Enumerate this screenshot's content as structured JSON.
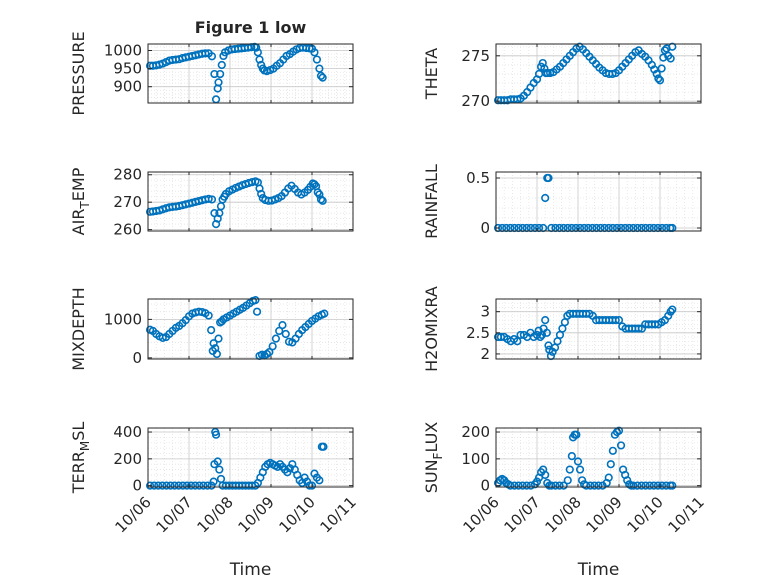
{
  "figure_title": "Figure 1 low",
  "colors": {
    "marker": "#0072BD",
    "axis": "#262626",
    "grid": "#c8c8c8",
    "background": "#ffffff"
  },
  "chart_data": [
    {
      "type": "scatter",
      "name": "pressure",
      "title": "Figure 1 low",
      "ylabel": "PRESSURE",
      "ylabel_sub": "",
      "ylabel_post": "",
      "xlabel": "",
      "xlim": [
        0,
        5
      ],
      "ylim": [
        855,
        1018
      ],
      "yticks": [
        900,
        950,
        1000
      ],
      "yticklabels": [
        "900",
        "950",
        "1000"
      ],
      "grid": true,
      "minor_grid": true,
      "x": [
        0.05,
        0.12,
        0.2,
        0.28,
        0.36,
        0.44,
        0.52,
        0.6,
        0.68,
        0.76,
        0.84,
        0.92,
        1.0,
        1.08,
        1.16,
        1.24,
        1.32,
        1.4,
        1.48,
        1.56,
        1.62,
        1.66,
        1.7,
        1.72,
        1.76,
        1.8,
        1.84,
        1.88,
        1.96,
        2.04,
        2.12,
        2.2,
        2.28,
        2.36,
        2.44,
        2.52,
        2.6,
        2.64,
        2.68,
        2.72,
        2.76,
        2.8,
        2.84,
        2.9,
        2.98,
        3.06,
        3.14,
        3.22,
        3.3,
        3.38,
        3.46,
        3.54,
        3.62,
        3.7,
        3.78,
        3.86,
        3.94,
        4.0,
        4.06,
        4.12,
        4.18,
        4.22,
        4.26
      ],
      "y": [
        958,
        958,
        959,
        961,
        964,
        968,
        972,
        974,
        975,
        976,
        979,
        981,
        983,
        985,
        987,
        989,
        991,
        992,
        992,
        984,
        935,
        865,
        895,
        912,
        935,
        960,
        985,
        995,
        1000,
        1003,
        1004,
        1005,
        1006,
        1007,
        1008,
        1009,
        1010,
        1008,
        995,
        975,
        960,
        950,
        945,
        943,
        946,
        950,
        958,
        965,
        975,
        985,
        990,
        997,
        1003,
        1007,
        1008,
        1007,
        1006,
        1005,
        995,
        975,
        950,
        930,
        925
      ]
    },
    {
      "type": "scatter",
      "name": "theta",
      "title": "",
      "ylabel": "THETA",
      "ylabel_sub": "",
      "ylabel_post": "",
      "xlabel": "",
      "xlim": [
        0,
        5
      ],
      "ylim": [
        269.8,
        276.3
      ],
      "yticks": [
        270,
        275
      ],
      "yticklabels": [
        "270",
        "275"
      ],
      "grid": true,
      "minor_grid": true,
      "x": [
        0.05,
        0.12,
        0.2,
        0.28,
        0.36,
        0.44,
        0.52,
        0.6,
        0.68,
        0.76,
        0.84,
        0.92,
        1.0,
        1.05,
        1.1,
        1.14,
        1.18,
        1.22,
        1.26,
        1.32,
        1.4,
        1.48,
        1.56,
        1.64,
        1.72,
        1.8,
        1.88,
        1.96,
        2.04,
        2.12,
        2.2,
        2.28,
        2.36,
        2.44,
        2.52,
        2.6,
        2.68,
        2.76,
        2.84,
        2.92,
        3.0,
        3.08,
        3.16,
        3.24,
        3.32,
        3.4,
        3.48,
        3.56,
        3.64,
        3.72,
        3.8,
        3.86,
        3.92,
        3.96,
        4.0,
        4.04,
        4.08,
        4.12,
        4.16,
        4.2,
        4.26,
        4.3
      ],
      "y": [
        270.1,
        270.1,
        270.1,
        270.1,
        270.2,
        270.2,
        270.2,
        270.3,
        270.6,
        271.0,
        271.5,
        272.0,
        272.4,
        273.0,
        273.8,
        274.2,
        273.6,
        273.1,
        273.1,
        273.1,
        273.2,
        273.5,
        273.8,
        274.2,
        274.6,
        275.0,
        275.4,
        275.8,
        276.0,
        275.7,
        275.3,
        274.9,
        274.5,
        274.1,
        273.7,
        273.4,
        273.1,
        273.0,
        273.0,
        273.1,
        273.4,
        273.8,
        274.2,
        274.6,
        275.0,
        275.4,
        275.6,
        275.2,
        274.9,
        274.5,
        274.0,
        273.5,
        273.0,
        272.5,
        272.3,
        273.6,
        274.8,
        275.6,
        275.8,
        275.0,
        274.7,
        276.0
      ]
    },
    {
      "type": "scatter",
      "name": "air_temp",
      "title": "",
      "ylabel": "AIR",
      "ylabel_sub": "T",
      "ylabel_post": "EMP",
      "xlabel": "",
      "xlim": [
        0,
        5
      ],
      "ylim": [
        259.5,
        281
      ],
      "yticks": [
        260,
        270,
        280
      ],
      "yticklabels": [
        "260",
        "270",
        "280"
      ],
      "grid": true,
      "minor_grid": true,
      "x": [
        0.05,
        0.12,
        0.2,
        0.28,
        0.36,
        0.44,
        0.52,
        0.6,
        0.68,
        0.76,
        0.84,
        0.92,
        1.0,
        1.08,
        1.16,
        1.24,
        1.32,
        1.4,
        1.48,
        1.56,
        1.62,
        1.66,
        1.7,
        1.74,
        1.78,
        1.82,
        1.86,
        1.9,
        1.98,
        2.06,
        2.14,
        2.22,
        2.3,
        2.38,
        2.46,
        2.54,
        2.62,
        2.68,
        2.72,
        2.76,
        2.8,
        2.86,
        2.94,
        3.02,
        3.1,
        3.18,
        3.26,
        3.34,
        3.42,
        3.5,
        3.58,
        3.66,
        3.74,
        3.82,
        3.9,
        3.96,
        4.02,
        4.06,
        4.1,
        4.14,
        4.18,
        4.22,
        4.26
      ],
      "y": [
        266.5,
        266.6,
        266.8,
        267.0,
        267.4,
        267.8,
        268.1,
        268.3,
        268.4,
        268.6,
        268.9,
        269.2,
        269.5,
        269.8,
        270.1,
        270.4,
        270.7,
        271.0,
        271.2,
        271.0,
        266.0,
        262.0,
        264.0,
        266.0,
        268.5,
        271.0,
        272.0,
        273.0,
        274.0,
        274.6,
        275.2,
        275.7,
        276.2,
        276.6,
        277.0,
        277.3,
        277.6,
        277.2,
        275.0,
        273.0,
        271.5,
        270.8,
        270.5,
        270.6,
        271.0,
        271.5,
        272.2,
        273.5,
        275.0,
        276.0,
        274.8,
        273.5,
        272.8,
        273.5,
        274.5,
        275.6,
        276.8,
        276.5,
        275.8,
        273.6,
        272.8,
        271.0,
        270.5
      ]
    },
    {
      "type": "scatter",
      "name": "rainfall",
      "title": "",
      "ylabel": "RAINFALL",
      "ylabel_sub": "",
      "ylabel_post": "",
      "xlabel": "",
      "xlim": [
        0,
        5
      ],
      "ylim": [
        -0.03,
        0.56
      ],
      "yticks": [
        0,
        0.5
      ],
      "yticklabels": [
        "0",
        "0.5"
      ],
      "grid": true,
      "minor_grid": true,
      "x": [
        0.05,
        0.15,
        0.25,
        0.35,
        0.45,
        0.55,
        0.65,
        0.75,
        0.85,
        0.95,
        1.05,
        1.15,
        1.2,
        1.25,
        1.28,
        1.35,
        1.45,
        1.55,
        1.65,
        1.75,
        1.85,
        1.95,
        2.05,
        2.15,
        2.25,
        2.35,
        2.45,
        2.55,
        2.65,
        2.75,
        2.85,
        2.95,
        3.05,
        3.15,
        3.25,
        3.35,
        3.45,
        3.55,
        3.65,
        3.75,
        3.85,
        3.95,
        4.05,
        4.15,
        4.25,
        4.3
      ],
      "y": [
        0,
        0,
        0,
        0,
        0,
        0,
        0,
        0,
        0,
        0,
        0,
        0,
        0.3,
        0.5,
        0.5,
        0,
        0,
        0,
        0,
        0,
        0,
        0,
        0,
        0,
        0,
        0,
        0,
        0,
        0,
        0,
        0,
        0,
        0,
        0,
        0,
        0,
        0,
        0,
        0,
        0,
        0,
        0,
        0,
        0,
        0,
        0
      ]
    },
    {
      "type": "scatter",
      "name": "mixdepth",
      "title": "",
      "ylabel": "MIXDEPTH",
      "ylabel_sub": "",
      "ylabel_post": "",
      "xlabel": "",
      "xlim": [
        0,
        5
      ],
      "ylim": [
        -30,
        1530
      ],
      "yticks": [
        0,
        1000
      ],
      "yticklabels": [
        "0",
        "1000"
      ],
      "grid": true,
      "minor_grid": true,
      "x": [
        0.05,
        0.12,
        0.2,
        0.28,
        0.36,
        0.44,
        0.52,
        0.6,
        0.68,
        0.76,
        0.84,
        0.92,
        1.0,
        1.08,
        1.16,
        1.24,
        1.32,
        1.4,
        1.48,
        1.54,
        1.58,
        1.6,
        1.64,
        1.68,
        1.72,
        1.76,
        1.8,
        1.84,
        1.92,
        2.0,
        2.08,
        2.16,
        2.24,
        2.32,
        2.4,
        2.48,
        2.56,
        2.62,
        2.66,
        2.72,
        2.78,
        2.84,
        2.9,
        2.96,
        3.04,
        3.12,
        3.2,
        3.28,
        3.36,
        3.44,
        3.52,
        3.6,
        3.68,
        3.76,
        3.84,
        3.92,
        4.0,
        4.08,
        4.16,
        4.24,
        4.3
      ],
      "y": [
        730,
        700,
        620,
        560,
        520,
        540,
        620,
        700,
        780,
        830,
        900,
        980,
        1080,
        1150,
        1180,
        1200,
        1190,
        1160,
        1100,
        720,
        180,
        380,
        250,
        100,
        500,
        920,
        950,
        1000,
        1050,
        1100,
        1150,
        1200,
        1250,
        1300,
        1360,
        1420,
        1480,
        1500,
        1200,
        50,
        80,
        60,
        100,
        150,
        300,
        500,
        700,
        850,
        620,
        420,
        400,
        500,
        620,
        720,
        800,
        880,
        960,
        1020,
        1080,
        1120,
        1150
      ]
    },
    {
      "type": "scatter",
      "name": "h2o_mixra",
      "title": "",
      "ylabel": "H2OMIXRA",
      "ylabel_sub": "",
      "ylabel_post": "",
      "xlabel": "",
      "xlim": [
        0,
        5
      ],
      "ylim": [
        1.88,
        3.3
      ],
      "yticks": [
        2,
        2.5,
        3
      ],
      "yticklabels": [
        "2",
        "2.5",
        "3"
      ],
      "grid": true,
      "minor_grid": true,
      "x": [
        0.05,
        0.12,
        0.2,
        0.28,
        0.36,
        0.44,
        0.52,
        0.6,
        0.68,
        0.76,
        0.84,
        0.92,
        1.0,
        1.04,
        1.08,
        1.12,
        1.16,
        1.2,
        1.24,
        1.28,
        1.3,
        1.34,
        1.38,
        1.44,
        1.5,
        1.56,
        1.62,
        1.68,
        1.74,
        1.8,
        1.88,
        1.96,
        2.04,
        2.12,
        2.2,
        2.28,
        2.36,
        2.44,
        2.52,
        2.6,
        2.68,
        2.76,
        2.84,
        2.92,
        3.0,
        3.08,
        3.16,
        3.24,
        3.32,
        3.4,
        3.48,
        3.56,
        3.64,
        3.72,
        3.8,
        3.88,
        3.96,
        4.04,
        4.12,
        4.2,
        4.26,
        4.3
      ],
      "y": [
        2.4,
        2.4,
        2.4,
        2.35,
        2.3,
        2.35,
        2.3,
        2.45,
        2.45,
        2.4,
        2.5,
        2.4,
        2.45,
        2.55,
        2.4,
        2.45,
        2.6,
        2.8,
        2.5,
        2.2,
        2.1,
        1.95,
        2.05,
        2.15,
        2.3,
        2.45,
        2.6,
        2.75,
        2.9,
        2.95,
        2.95,
        2.95,
        2.95,
        2.95,
        2.95,
        2.95,
        2.9,
        2.8,
        2.8,
        2.8,
        2.8,
        2.8,
        2.8,
        2.8,
        2.8,
        2.65,
        2.6,
        2.6,
        2.6,
        2.6,
        2.6,
        2.6,
        2.7,
        2.7,
        2.7,
        2.7,
        2.7,
        2.75,
        2.8,
        2.9,
        3.0,
        3.05
      ]
    },
    {
      "type": "scatter",
      "name": "terr_msl",
      "title": "",
      "ylabel": "TERR",
      "ylabel_sub": "M",
      "ylabel_post": "SL",
      "xlabel": "Time",
      "xlim": [
        0,
        5
      ],
      "ylim": [
        -10,
        430
      ],
      "yticks": [
        0,
        200,
        400
      ],
      "yticklabels": [
        "0",
        "200",
        "400"
      ],
      "xticks": [
        0,
        1,
        2,
        3,
        4,
        5
      ],
      "xticklabels": [
        "10/06",
        "10/07",
        "10/08",
        "10/09",
        "10/10",
        "10/11"
      ],
      "grid": true,
      "minor_grid": true,
      "x": [
        0.05,
        0.15,
        0.25,
        0.35,
        0.45,
        0.55,
        0.65,
        0.75,
        0.85,
        0.95,
        1.05,
        1.15,
        1.25,
        1.35,
        1.45,
        1.55,
        1.6,
        1.62,
        1.64,
        1.66,
        1.7,
        1.74,
        1.78,
        1.82,
        1.9,
        1.98,
        2.06,
        2.14,
        2.22,
        2.3,
        2.38,
        2.46,
        2.54,
        2.62,
        2.68,
        2.74,
        2.8,
        2.86,
        2.92,
        2.98,
        3.04,
        3.1,
        3.16,
        3.22,
        3.28,
        3.34,
        3.4,
        3.46,
        3.52,
        3.58,
        3.64,
        3.7,
        3.76,
        3.82,
        3.88,
        3.94,
        4.0,
        4.06,
        4.12,
        4.18,
        4.24,
        4.28
      ],
      "y": [
        0,
        0,
        0,
        0,
        0,
        0,
        0,
        0,
        0,
        0,
        0,
        0,
        0,
        0,
        0,
        0,
        30,
        160,
        400,
        380,
        180,
        120,
        50,
        0,
        0,
        0,
        0,
        0,
        0,
        0,
        0,
        0,
        0,
        0,
        20,
        60,
        100,
        140,
        160,
        170,
        160,
        150,
        140,
        160,
        140,
        120,
        100,
        130,
        160,
        120,
        80,
        40,
        20,
        60,
        30,
        0,
        0,
        90,
        60,
        40,
        290,
        290
      ]
    },
    {
      "type": "scatter",
      "name": "sun_flux",
      "title": "",
      "ylabel": "SUN",
      "ylabel_sub": "F",
      "ylabel_post": "LUX",
      "xlabel": "Time",
      "xlim": [
        0,
        5
      ],
      "ylim": [
        -5,
        215
      ],
      "yticks": [
        0,
        100,
        200
      ],
      "yticklabels": [
        "0",
        "100",
        "200"
      ],
      "xticks": [
        0,
        1,
        2,
        3,
        4,
        5
      ],
      "xticklabels": [
        "10/06",
        "10/07",
        "10/08",
        "10/09",
        "10/10",
        "10/11"
      ],
      "grid": true,
      "minor_grid": true,
      "x": [
        0.05,
        0.1,
        0.15,
        0.2,
        0.25,
        0.3,
        0.35,
        0.45,
        0.55,
        0.65,
        0.75,
        0.85,
        0.95,
        1.0,
        1.05,
        1.1,
        1.15,
        1.2,
        1.25,
        1.3,
        1.35,
        1.45,
        1.55,
        1.65,
        1.75,
        1.8,
        1.85,
        1.88,
        1.92,
        1.96,
        2.0,
        2.05,
        2.1,
        2.15,
        2.2,
        2.3,
        2.4,
        2.5,
        2.6,
        2.7,
        2.75,
        2.8,
        2.85,
        2.9,
        2.95,
        3.0,
        3.05,
        3.1,
        3.15,
        3.2,
        3.25,
        3.3,
        3.35,
        3.45,
        3.55,
        3.65,
        3.75,
        3.85,
        3.95,
        4.05,
        4.15,
        4.25,
        4.3
      ],
      "y": [
        10,
        20,
        25,
        20,
        10,
        5,
        0,
        0,
        0,
        0,
        0,
        0,
        5,
        15,
        30,
        50,
        60,
        40,
        10,
        0,
        0,
        0,
        0,
        0,
        20,
        60,
        110,
        180,
        190,
        190,
        90,
        60,
        20,
        5,
        0,
        0,
        0,
        0,
        0,
        10,
        30,
        80,
        130,
        190,
        200,
        205,
        150,
        60,
        40,
        20,
        5,
        0,
        0,
        0,
        0,
        0,
        0,
        0,
        0,
        0,
        0,
        0,
        0
      ]
    }
  ]
}
